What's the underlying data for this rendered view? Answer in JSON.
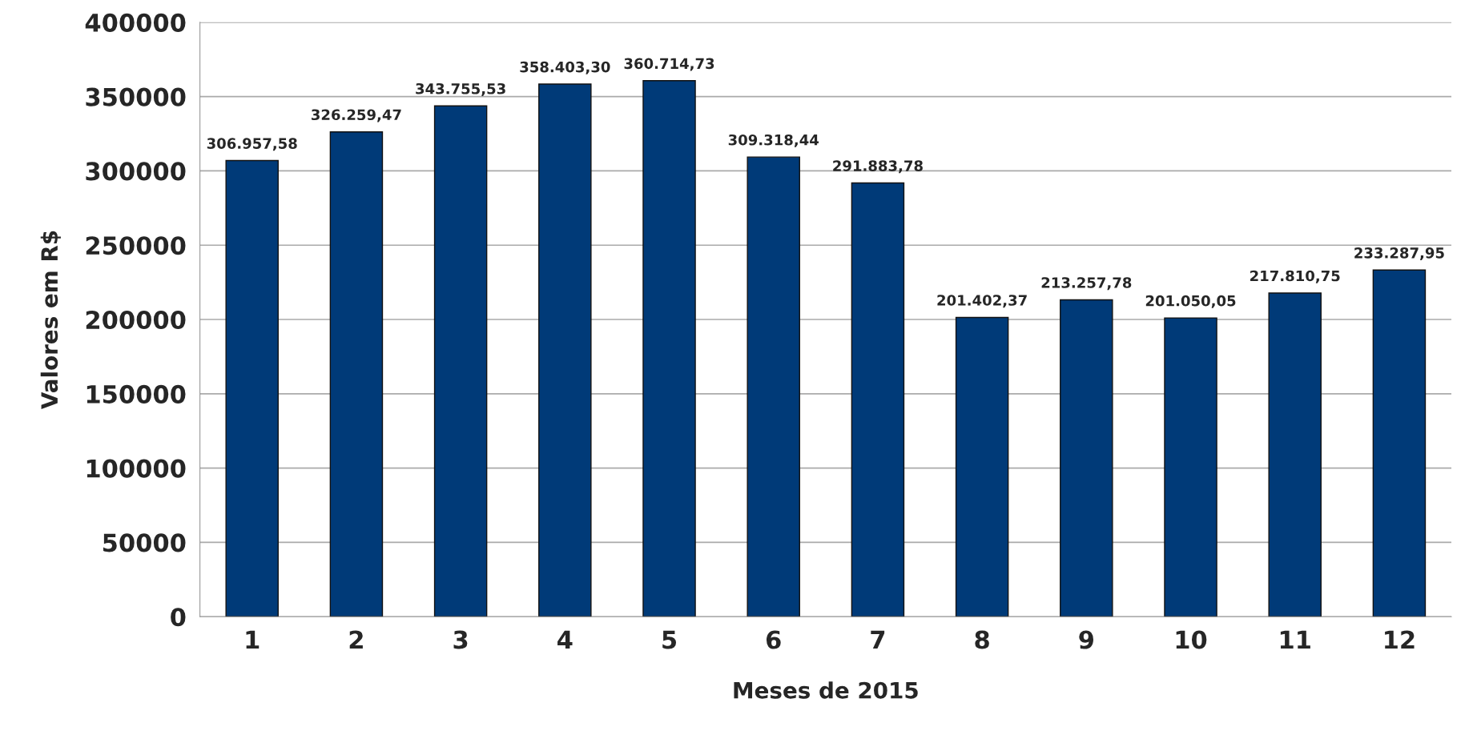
{
  "chart_data": {
    "type": "bar",
    "xlabel": "Meses de 2015",
    "ylabel": "Valores em R$",
    "categories": [
      "1",
      "2",
      "3",
      "4",
      "5",
      "6",
      "7",
      "8",
      "9",
      "10",
      "11",
      "12"
    ],
    "values": [
      306957.58,
      326259.47,
      343755.53,
      358403.3,
      360714.73,
      309318.44,
      291883.78,
      201402.37,
      213257.78,
      201050.05,
      217810.75,
      233287.95
    ],
    "value_labels": [
      "306.957,58",
      "326.259,47",
      "343.755,53",
      "358.403,30",
      "360.714,73",
      "309.318,44",
      "291.883,78",
      "201.402,37",
      "213.257,78",
      "201.050,05",
      "217.810,75",
      "233.287,95"
    ],
    "color": "#003a78",
    "ylim": [
      0,
      400000
    ],
    "yticks": [
      0,
      50000,
      100000,
      150000,
      200000,
      250000,
      300000,
      350000,
      400000
    ],
    "grid": "y",
    "legend": false
  }
}
